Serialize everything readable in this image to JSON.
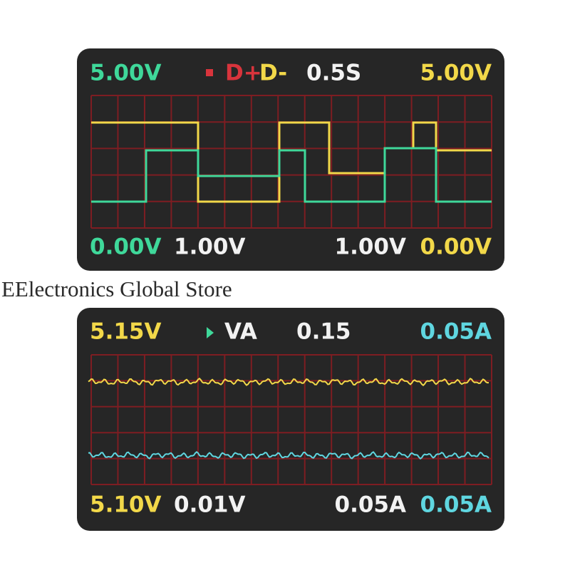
{
  "panels": [
    {
      "header": {
        "left": "5.00V",
        "mode_a": "D+",
        "mode_b": "D-",
        "timebase": "0.5S",
        "right": "5.00V"
      },
      "footer": [
        "0.00V",
        "1.00V",
        "1.00V",
        "0.00V"
      ]
    },
    {
      "header": {
        "left": "5.15V",
        "mode_a": "VA",
        "timebase": "0.15",
        "right": "0.05A"
      },
      "footer": [
        "5.10V",
        "0.01V",
        "0.05A",
        "0.05A"
      ]
    }
  ],
  "watermark": "EElectronics Global Store"
}
